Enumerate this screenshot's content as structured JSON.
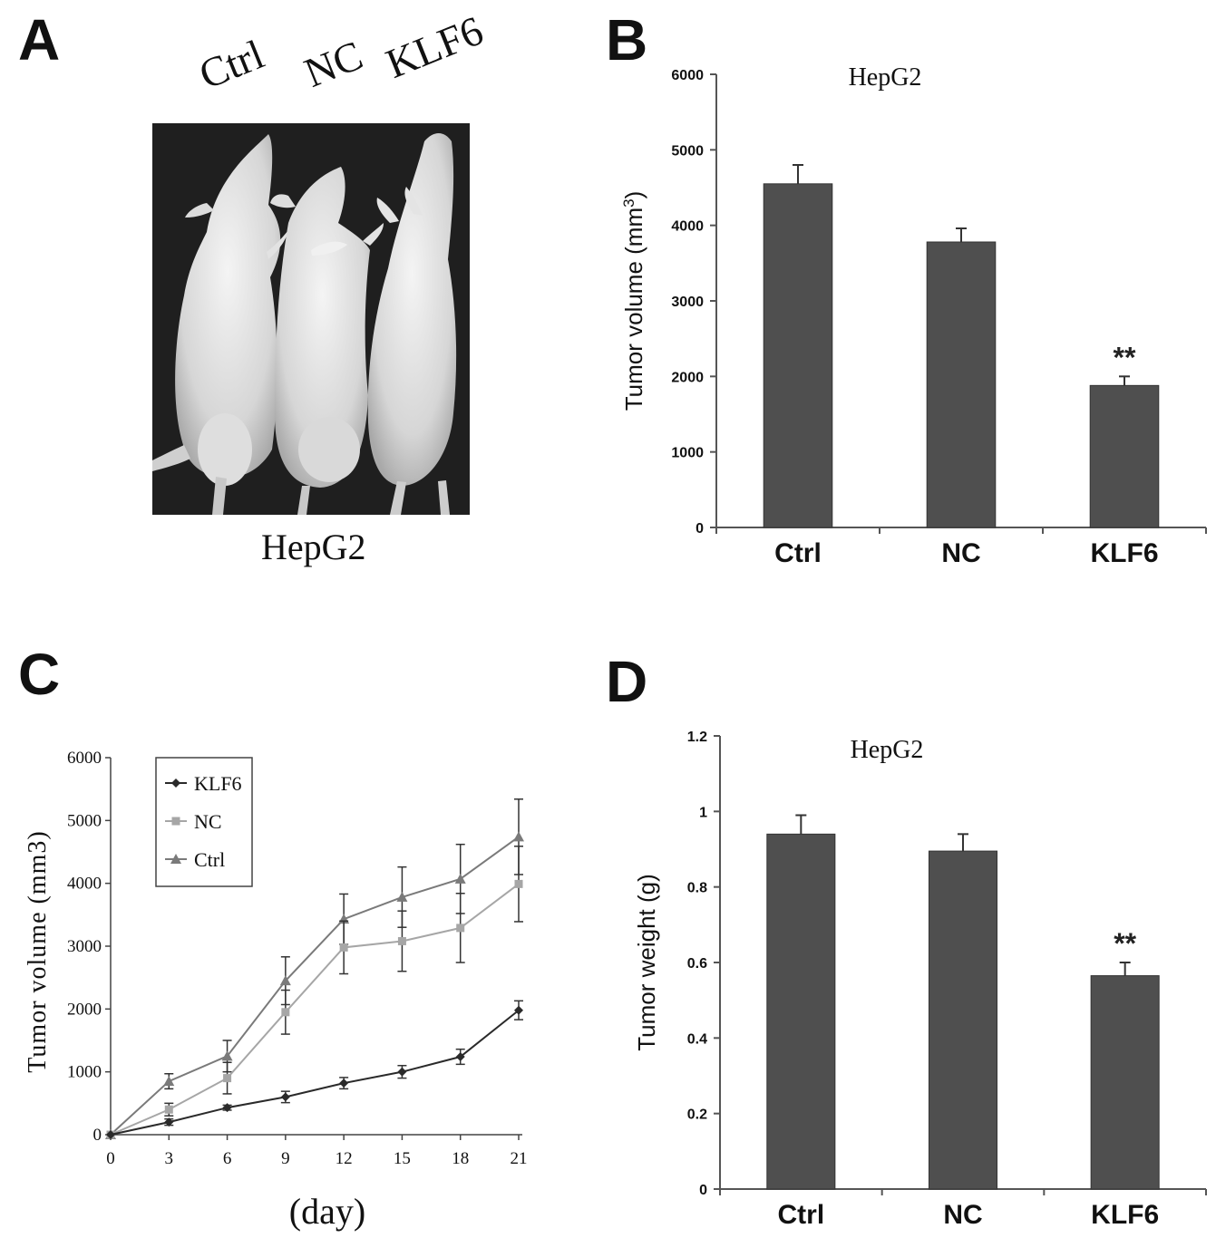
{
  "panels": {
    "a": "A",
    "b": "B",
    "c": "C",
    "d": "D"
  },
  "photo": {
    "labels": [
      "Ctrl",
      "NC",
      "KLF6"
    ],
    "caption": "HepG2"
  },
  "colors": {
    "bar": "#4f4f4f",
    "klf6": "#2a2a2a",
    "nc": "#a6a6a6",
    "ctrl": "#7a7a7a"
  },
  "chart_data": [
    {
      "id": "B",
      "type": "bar",
      "title": "HepG2",
      "ylabel": "Tumor volume (mm3)",
      "categories": [
        "Ctrl",
        "NC",
        "KLF6"
      ],
      "values": [
        4550,
        3780,
        1880
      ],
      "errors": [
        250,
        180,
        120
      ],
      "annotations": [
        "",
        "",
        "**"
      ],
      "ylim": [
        0,
        6000
      ],
      "yticks": [
        0,
        1000,
        2000,
        3000,
        4000,
        5000,
        6000
      ],
      "ytick_labels": [
        "0",
        "1000",
        "2000",
        "3000",
        "4000",
        "5000",
        "6000"
      ],
      "grid": false
    },
    {
      "id": "C",
      "type": "line",
      "title": "",
      "xlabel": "(day)",
      "ylabel": "Tumor volume (mm3)",
      "x": [
        0,
        3,
        6,
        9,
        12,
        15,
        18,
        21
      ],
      "xtick_labels": [
        "0",
        "3",
        "6",
        "9",
        "12",
        "15",
        "18",
        "21"
      ],
      "ylim": [
        0,
        6000
      ],
      "yticks": [
        0,
        1000,
        2000,
        3000,
        4000,
        5000,
        6000
      ],
      "ytick_labels": [
        "0",
        "1000",
        "2000",
        "3000",
        "4000",
        "5000",
        "6000"
      ],
      "legend": "top-left",
      "series": [
        {
          "name": "KLF6",
          "marker": "diamond",
          "values": [
            0,
            200,
            430,
            600,
            820,
            1000,
            1240,
            1980
          ],
          "errors": [
            0,
            50,
            40,
            90,
            90,
            100,
            120,
            150
          ]
        },
        {
          "name": "NC",
          "marker": "square",
          "values": [
            0,
            400,
            900,
            1950,
            2980,
            3080,
            3290,
            3990
          ],
          "errors": [
            0,
            100,
            250,
            350,
            420,
            480,
            550,
            600
          ]
        },
        {
          "name": "Ctrl",
          "marker": "triangle",
          "values": [
            0,
            850,
            1250,
            2450,
            3430,
            3780,
            4070,
            4740
          ],
          "errors": [
            0,
            120,
            250,
            380,
            400,
            480,
            550,
            600
          ]
        }
      ],
      "grid": false
    },
    {
      "id": "D",
      "type": "bar",
      "title": "HepG2",
      "ylabel": "Tumor weight (g)",
      "categories": [
        "Ctrl",
        "NC",
        "KLF6"
      ],
      "values": [
        0.94,
        0.895,
        0.565
      ],
      "errors": [
        0.05,
        0.045,
        0.035
      ],
      "annotations": [
        "",
        "",
        "**"
      ],
      "ylim": [
        0,
        1.2
      ],
      "yticks": [
        0,
        0.2,
        0.4,
        0.6,
        0.8,
        1.0,
        1.2
      ],
      "ytick_labels": [
        "0",
        "0.2",
        "0.4",
        "0.6",
        "0.8",
        "1",
        "1.2"
      ],
      "grid": false
    }
  ]
}
